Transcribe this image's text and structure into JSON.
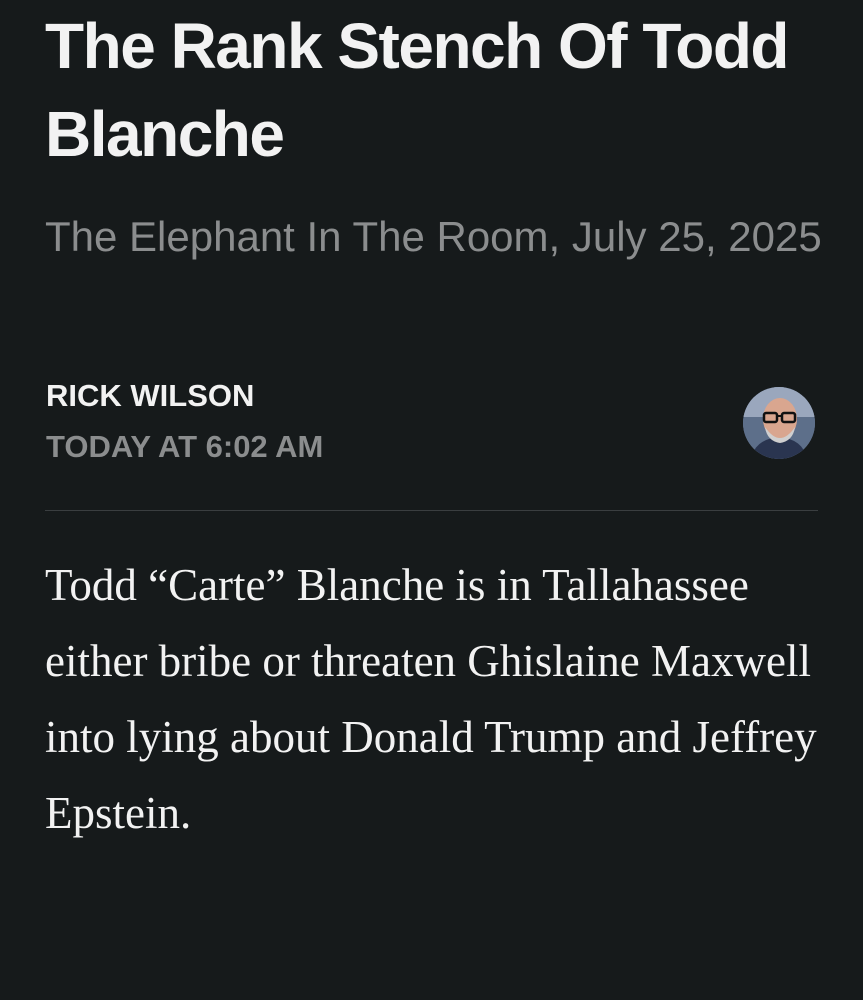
{
  "article": {
    "title": "The Rank Stench Of Todd Blanche",
    "subtitle": "The Elephant In The Room, July 25, 2025",
    "author": "RICK WILSON",
    "timestamp": "TODAY AT 6:02 AM",
    "body": "Todd “Carte” Blanche is in Tallahassee either bribe or threaten Ghislaine Maxwell into lying about Donald Trump and Jeffrey Epstein."
  },
  "colors": {
    "background": "#161a1b",
    "text": "#f2f2f2",
    "muted": "#8b8d8e"
  }
}
